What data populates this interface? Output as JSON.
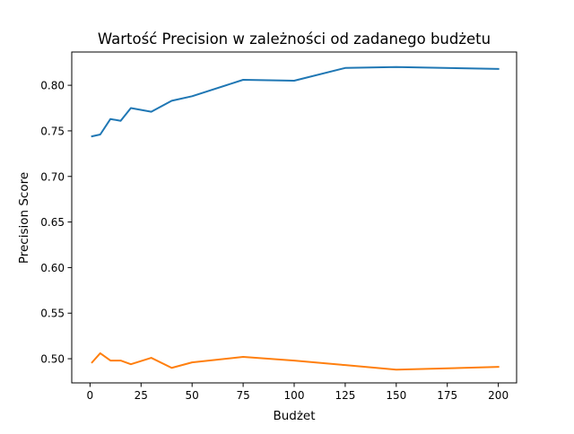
{
  "chart_data": {
    "type": "line",
    "title": "Wartość Precision w zależności od zadanego budżetu",
    "xlabel": "Budżet",
    "ylabel": "Precision Score",
    "xlim": [
      -8.95,
      208.95
    ],
    "ylim": [
      0.4735,
      0.8365
    ],
    "xticks": [
      0,
      25,
      50,
      75,
      100,
      125,
      150,
      175,
      200
    ],
    "yticks": [
      0.5,
      0.55,
      0.6,
      0.65,
      0.7,
      0.75,
      0.8
    ],
    "xtick_labels": [
      "0",
      "25",
      "50",
      "75",
      "100",
      "125",
      "150",
      "175",
      "200"
    ],
    "ytick_labels": [
      "0.50",
      "0.55",
      "0.60",
      "0.65",
      "0.70",
      "0.75",
      "0.80"
    ],
    "grid": false,
    "legend": null,
    "x": [
      1,
      5,
      10,
      15,
      20,
      30,
      40,
      50,
      75,
      100,
      125,
      150,
      200
    ],
    "series": [
      {
        "color": "#1f77b4",
        "values": [
          0.744,
          0.746,
          0.763,
          0.761,
          0.775,
          0.771,
          0.783,
          0.788,
          0.806,
          0.805,
          0.819,
          0.82,
          0.818
        ]
      },
      {
        "color": "#ff7f0e",
        "values": [
          0.496,
          0.506,
          0.498,
          0.498,
          0.494,
          0.501,
          0.49,
          0.496,
          0.502,
          0.498,
          0.493,
          0.488,
          0.491
        ]
      }
    ]
  }
}
